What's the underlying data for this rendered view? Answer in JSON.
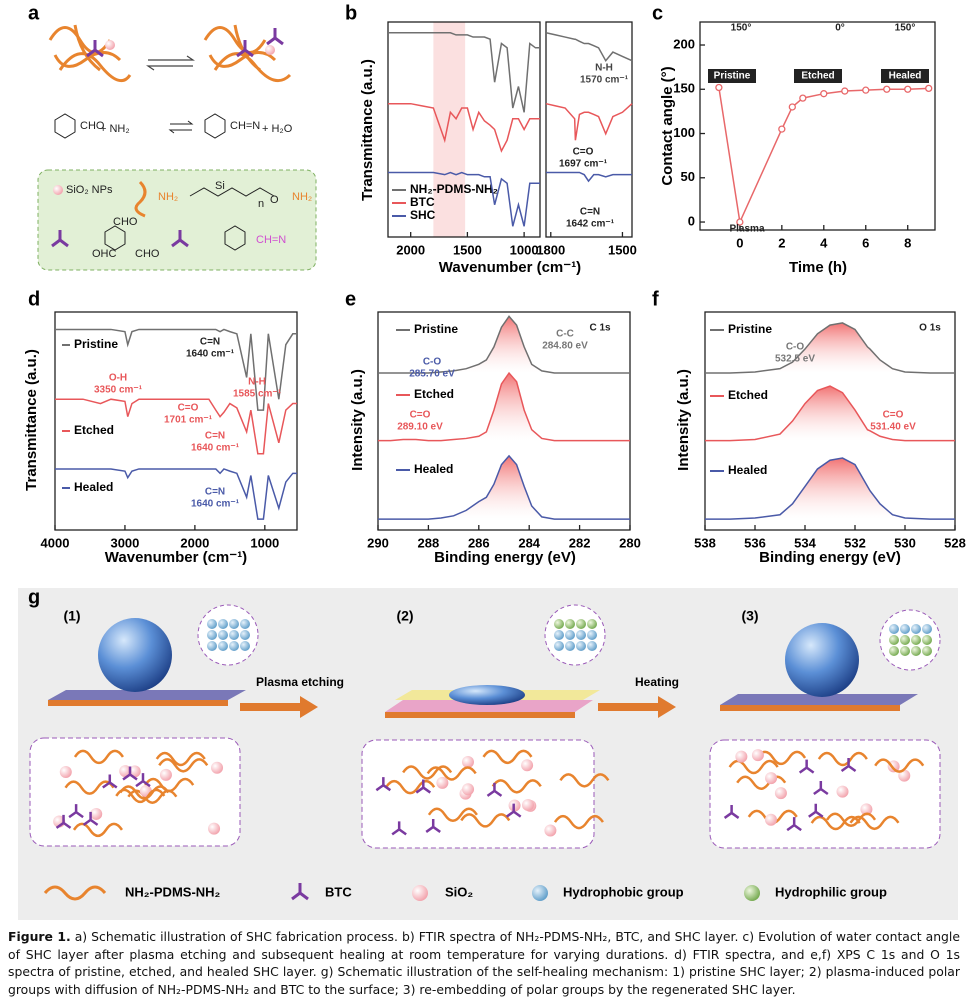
{
  "panel_labels": [
    "a",
    "b",
    "c",
    "d",
    "e",
    "f",
    "g"
  ],
  "schematic_a": {
    "texts": [
      "CHO",
      "+ NH₂",
      "CH=N",
      "+ H₂O",
      "SiO₂ NPs",
      "NH₂",
      "Si",
      "O",
      "n",
      "NH₂",
      "CHO",
      "OHC",
      "CHO",
      "CH=N"
    ]
  },
  "schematic_g": {
    "steps": [
      "(1)",
      "(2)",
      "(3)"
    ],
    "arrows": [
      "Plasma etching",
      "Heating"
    ],
    "legend": [
      "NH₂-PDMS-NH₂",
      "BTC",
      "SiO₂",
      "Hydrophobic group",
      "Hydrophilic group"
    ]
  },
  "chart_data": [
    {
      "type": "line",
      "ylabel": "Transmittance (a.u.)",
      "xlabel": "Wavenumber (cm⁻¹)",
      "xlim": [
        2200,
        860
      ],
      "ylim": [
        0,
        100
      ],
      "xticks": [
        2000,
        1500,
        1000
      ],
      "highlight": [
        1800,
        1520
      ],
      "x": [
        2200,
        2100,
        2000,
        1900,
        1800,
        1700,
        1650,
        1600,
        1550,
        1500,
        1450,
        1400,
        1350,
        1300,
        1260,
        1200,
        1150,
        1100,
        1050,
        1000,
        950,
        900,
        860
      ],
      "series": [
        {
          "name": "NH₂-PDMS-NH₂",
          "color": "#707070",
          "values": [
            95,
            95,
            95,
            95,
            95,
            95,
            95,
            94,
            94,
            94,
            93,
            93,
            93,
            92,
            72,
            90,
            88,
            60,
            70,
            58,
            90,
            88,
            88
          ]
        },
        {
          "name": "BTC",
          "color": "#e8575a",
          "values": [
            62,
            62,
            62,
            61,
            60,
            45,
            58,
            55,
            60,
            60,
            50,
            58,
            54,
            52,
            50,
            40,
            45,
            55,
            55,
            50,
            55,
            55,
            55
          ]
        },
        {
          "name": "SHC",
          "color": "#4a5aa8",
          "values": [
            30,
            30,
            30,
            30,
            30,
            29,
            30,
            29,
            30,
            29,
            29,
            29,
            28,
            28,
            15,
            27,
            25,
            5,
            15,
            5,
            25,
            25,
            25
          ]
        }
      ]
    },
    {
      "type": "line",
      "xlim": [
        1820,
        1460
      ],
      "ylim": [
        0,
        100
      ],
      "xticks": [
        1800,
        1500
      ],
      "x": [
        1820,
        1780,
        1740,
        1700,
        1697,
        1680,
        1660,
        1642,
        1620,
        1600,
        1570,
        1540,
        1500,
        1460
      ],
      "series": [
        {
          "color": "#707070",
          "values": [
            95,
            94,
            93,
            92,
            92,
            91,
            90,
            90,
            89,
            88,
            82,
            86,
            84,
            82
          ]
        },
        {
          "color": "#e8575a",
          "values": [
            62,
            61,
            60,
            55,
            45,
            57,
            58,
            58,
            57,
            56,
            48,
            56,
            58,
            62
          ]
        },
        {
          "color": "#4a5aa8",
          "values": [
            30,
            30,
            30,
            30,
            30,
            30,
            29,
            26,
            29,
            29,
            28,
            29,
            29,
            29
          ]
        }
      ],
      "annotations": [
        [
          "N-H",
          "1570 cm⁻¹"
        ],
        [
          "C=O",
          "1697 cm⁻¹"
        ],
        [
          "C=N",
          "1642 cm⁻¹"
        ]
      ]
    },
    {
      "type": "line",
      "ylabel": "Contact angle (°)",
      "xlabel": "Time (h)",
      "markers": true,
      "xlim": [
        -1.9,
        9.3
      ],
      "ylim": [
        -9,
        226
      ],
      "xticks": [
        0,
        2,
        4,
        6,
        8
      ],
      "yticks": [
        0,
        50,
        100,
        150,
        200
      ],
      "x": [
        -1,
        0,
        2,
        2.5,
        3,
        4,
        5,
        6,
        7,
        8,
        9
      ],
      "series": [
        {
          "color": "#e8686a",
          "values": [
            152,
            0,
            105,
            130,
            140,
            145,
            148,
            149,
            150,
            150,
            151
          ]
        }
      ],
      "annotations": [
        [
          "150°"
        ],
        [
          "0°"
        ],
        [
          "150°"
        ],
        [
          "Pristine"
        ],
        [
          "Etched"
        ],
        [
          "Healed"
        ],
        [
          "Plasma"
        ]
      ]
    },
    {
      "type": "line",
      "ylabel": "Transmittance (a.u.)",
      "xlabel": "Wavenumber (cm⁻¹)",
      "xlim": [
        4000,
        540
      ],
      "ylim": [
        0,
        100
      ],
      "xticks": [
        4000,
        3000,
        2000,
        1000
      ],
      "x": [
        4000,
        3600,
        3350,
        3200,
        3000,
        2960,
        2900,
        2800,
        2500,
        2200,
        2000,
        1800,
        1701,
        1640,
        1585,
        1500,
        1400,
        1260,
        1200,
        1100,
        1020,
        950,
        800,
        700,
        600,
        540
      ],
      "series": [
        {
          "name": "Pristine",
          "color": "#707070",
          "values": [
            92,
            92,
            92,
            92,
            91,
            85,
            91,
            92,
            92,
            92,
            92,
            92,
            92,
            91,
            92,
            91,
            90,
            70,
            90,
            55,
            55,
            90,
            60,
            85,
            90,
            90
          ]
        },
        {
          "name": "Etched",
          "color": "#e8575a",
          "values": [
            60,
            60,
            58,
            60,
            59,
            52,
            58,
            60,
            60,
            60,
            60,
            60,
            55,
            52,
            54,
            58,
            56,
            45,
            55,
            35,
            35,
            58,
            40,
            55,
            58,
            58
          ]
        },
        {
          "name": "Healed",
          "color": "#4a5aa8",
          "values": [
            28,
            28,
            28,
            28,
            27,
            24,
            27,
            28,
            28,
            28,
            28,
            28,
            28,
            26,
            28,
            27,
            26,
            15,
            25,
            5,
            5,
            25,
            10,
            22,
            26,
            26
          ]
        }
      ],
      "annotations": [
        [
          "C=N",
          "1640 cm⁻¹"
        ],
        [
          "O-H",
          "3350 cm⁻¹"
        ],
        [
          "C=O",
          "1701 cm⁻¹"
        ],
        [
          "N-H",
          "1585 cm⁻¹"
        ],
        [
          "C=N",
          "1640 cm⁻¹"
        ],
        [
          "C=N",
          "1640 cm⁻¹"
        ]
      ]
    },
    {
      "type": "line",
      "fill": true,
      "ylabel": "Intensity (a.u.)",
      "xlabel": "Binding energy (eV)",
      "xlim": [
        290,
        280
      ],
      "ylim": [
        0,
        100
      ],
      "xticks": [
        290,
        288,
        286,
        284,
        282,
        280
      ],
      "x": [
        290,
        289.5,
        289,
        288.5,
        288,
        287.5,
        287,
        286.5,
        286,
        285.7,
        285.4,
        285.1,
        284.8,
        284.5,
        284.2,
        283.9,
        283.5,
        283,
        282.5,
        282,
        281,
        280
      ],
      "series": [
        {
          "name": "Pristine",
          "color": "#707070",
          "values": [
            72,
            72,
            72,
            72,
            72,
            72.5,
            73,
            74,
            76,
            78,
            84,
            93,
            98,
            94,
            84,
            76,
            73,
            72,
            72,
            72,
            72,
            72
          ]
        },
        {
          "name": "Etched",
          "color": "#e8575a",
          "values": [
            41,
            41,
            41.5,
            41.5,
            41,
            41,
            41.5,
            42,
            43,
            45,
            55,
            67,
            72,
            68,
            55,
            46,
            42,
            41,
            41,
            41,
            41,
            41
          ]
        },
        {
          "name": "Healed",
          "color": "#4a5aa8",
          "values": [
            5,
            5,
            5,
            5,
            5,
            5.5,
            6.5,
            9,
            13,
            15,
            21,
            30,
            34,
            30,
            20,
            11,
            6,
            5,
            5,
            5,
            5,
            5
          ]
        }
      ],
      "annotations": [
        [
          "C 1s"
        ],
        [
          "C-C",
          "284.80 eV"
        ],
        [
          "C-O",
          "285.70 eV"
        ],
        [
          "C=O",
          "289.10 eV"
        ]
      ]
    },
    {
      "type": "line",
      "fill": true,
      "ylabel": "Intensity (a.u.)",
      "xlabel": "Binding energy (eV)",
      "xlim": [
        538,
        528
      ],
      "ylim": [
        0,
        100
      ],
      "xticks": [
        538,
        536,
        534,
        532,
        530,
        528
      ],
      "x": [
        538,
        537,
        536,
        535,
        534.5,
        534,
        533.5,
        533,
        532.5,
        532,
        531.5,
        531.4,
        531,
        530.5,
        530,
        529,
        528
      ],
      "series": [
        {
          "name": "Pristine",
          "color": "#707070",
          "values": [
            72,
            72,
            72.5,
            74,
            77,
            83,
            90,
            94,
            95,
            92,
            84,
            83,
            78,
            74,
            72.5,
            72,
            72
          ]
        },
        {
          "name": "Etched",
          "color": "#e8575a",
          "values": [
            41,
            41,
            41.5,
            44,
            50,
            58,
            64,
            66,
            63,
            55,
            46,
            45.5,
            43,
            41.5,
            41,
            41,
            41
          ]
        },
        {
          "name": "Healed",
          "color": "#4a5aa8",
          "values": [
            5,
            5,
            5.5,
            7,
            12,
            20,
            28,
            32,
            33,
            30,
            20,
            18,
            12,
            7,
            5.5,
            5,
            5
          ]
        }
      ],
      "annotations": [
        [
          "O 1s"
        ],
        [
          "C-O",
          "532.5 eV"
        ],
        [
          "C=O",
          "531.40 eV"
        ]
      ]
    }
  ],
  "caption": {
    "label": "Figure 1.",
    "text": "a) Schematic illustration of SHC fabrication process. b) FTIR spectra of NH₂-PDMS-NH₂, BTC, and SHC layer. c) Evolution of water contact angle of SHC layer after plasma etching and subsequent healing at room temperature for varying durations. d) FTIR spectra, and e,f) XPS C 1s and O 1s spectra of pristine, etched, and healed SHC layer. g) Schematic illustration of the self-healing mechanism: 1) pristine SHC layer; 2) plasma-induced polar groups with diffusion of NH₂-PDMS-NH₂ and BTC to the surface; 3) re-embedding of polar groups by the regenerated SHC layer."
  }
}
